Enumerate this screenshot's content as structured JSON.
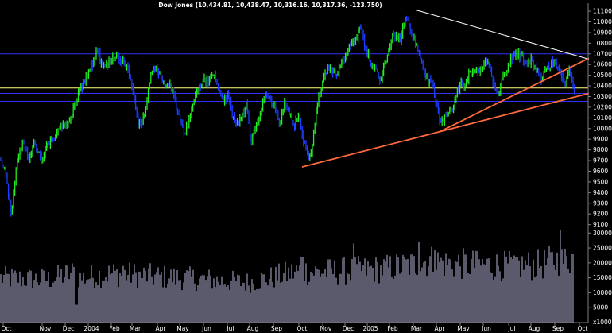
{
  "chart_data": {
    "type": "candlestick-with-volume",
    "title": "Dow Jones (10,434.81, 10,438.47, 10,316.16, 10,317.36, -123.750)",
    "price_axis": {
      "ticks": [
        11100,
        11000,
        10900,
        10800,
        10700,
        10600,
        10500,
        10400,
        10300,
        10200,
        10100,
        10000,
        9900,
        9800,
        9700,
        9600,
        9500,
        9400,
        9300,
        9200,
        9100
      ],
      "ylim": [
        9060,
        11160
      ]
    },
    "volume_axis": {
      "ticks": [
        30000,
        25000,
        20000,
        15000,
        10000,
        5000
      ],
      "bottom_label": "x1000",
      "ylim": [
        0,
        33000
      ]
    },
    "x_axis": {
      "labels": [
        "Oct",
        "Nov",
        "Dec",
        "2004",
        "Feb",
        "Mar",
        "Apr",
        "May",
        "Jun",
        "Jul",
        "Aug",
        "Sep",
        "Oct",
        "Nov",
        "Dec",
        "2005",
        "Feb",
        "Mar",
        "Apr",
        "May",
        "Jun",
        "Jul",
        "Aug",
        "Sep",
        "Oct"
      ]
    },
    "horizontal_lines": [
      {
        "value": 10700,
        "color": "#3030ff"
      },
      {
        "value": 10380,
        "color": "#ffff80"
      },
      {
        "value": 10330,
        "color": "#3030ff"
      },
      {
        "value": 10255,
        "color": "#3030ff"
      }
    ],
    "trendlines": [
      {
        "name": "resistance",
        "color": "#ffffff",
        "from": [
          "Mar 2005",
          11110
        ],
        "to": [
          "Oct 2005",
          10650
        ]
      },
      {
        "name": "support-long",
        "color": "#ff6a3c",
        "from": [
          "Oct 2004",
          9640
        ],
        "to": [
          "Oct 2005",
          10330
        ]
      },
      {
        "name": "support-steep",
        "color": "#ff6a3c",
        "from": [
          "Apr 2005",
          9970
        ],
        "to": [
          "Oct 2005",
          10660
        ]
      }
    ],
    "price_path": [
      [
        0,
        9700
      ],
      [
        5,
        9650
      ],
      [
        10,
        9420
      ],
      [
        14,
        9200
      ],
      [
        20,
        9640
      ],
      [
        28,
        9880
      ],
      [
        36,
        9720
      ],
      [
        44,
        9850
      ],
      [
        52,
        9700
      ],
      [
        60,
        9840
      ],
      [
        68,
        9920
      ],
      [
        76,
        10050
      ],
      [
        84,
        10010
      ],
      [
        92,
        10180
      ],
      [
        100,
        10350
      ],
      [
        108,
        10480
      ],
      [
        116,
        10600
      ],
      [
        122,
        10720
      ],
      [
        130,
        10560
      ],
      [
        138,
        10620
      ],
      [
        146,
        10700
      ],
      [
        154,
        10640
      ],
      [
        160,
        10560
      ],
      [
        166,
        10420
      ],
      [
        172,
        10100
      ],
      [
        178,
        10010
      ],
      [
        184,
        10240
      ],
      [
        190,
        10520
      ],
      [
        196,
        10580
      ],
      [
        202,
        10500
      ],
      [
        208,
        10380
      ],
      [
        214,
        10420
      ],
      [
        220,
        10260
      ],
      [
        226,
        10120
      ],
      [
        232,
        9950
      ],
      [
        238,
        10080
      ],
      [
        244,
        10260
      ],
      [
        250,
        10380
      ],
      [
        256,
        10460
      ],
      [
        262,
        10420
      ],
      [
        268,
        10520
      ],
      [
        274,
        10400
      ],
      [
        280,
        10260
      ],
      [
        286,
        10320
      ],
      [
        292,
        10140
      ],
      [
        298,
        10020
      ],
      [
        304,
        10120
      ],
      [
        310,
        10220
      ],
      [
        316,
        9880
      ],
      [
        322,
        10010
      ],
      [
        328,
        10180
      ],
      [
        334,
        10320
      ],
      [
        340,
        10240
      ],
      [
        346,
        10200
      ],
      [
        352,
        10060
      ],
      [
        358,
        10240
      ],
      [
        364,
        10160
      ],
      [
        370,
        10020
      ],
      [
        376,
        10120
      ],
      [
        382,
        9880
      ],
      [
        388,
        9720
      ],
      [
        392,
        9760
      ],
      [
        396,
        10040
      ],
      [
        400,
        10280
      ],
      [
        406,
        10420
      ],
      [
        412,
        10560
      ],
      [
        418,
        10540
      ],
      [
        424,
        10520
      ],
      [
        430,
        10620
      ],
      [
        436,
        10700
      ],
      [
        442,
        10820
      ],
      [
        448,
        10860
      ],
      [
        454,
        10940
      ],
      [
        460,
        10760
      ],
      [
        466,
        10620
      ],
      [
        472,
        10540
      ],
      [
        478,
        10460
      ],
      [
        484,
        10620
      ],
      [
        490,
        10760
      ],
      [
        496,
        10900
      ],
      [
        502,
        10820
      ],
      [
        508,
        10960
      ],
      [
        512,
        11060
      ],
      [
        516,
        10920
      ],
      [
        522,
        10820
      ],
      [
        526,
        10700
      ],
      [
        532,
        10560
      ],
      [
        538,
        10460
      ],
      [
        544,
        10420
      ],
      [
        548,
        10280
      ],
      [
        554,
        10040
      ],
      [
        560,
        10100
      ],
      [
        566,
        10140
      ],
      [
        572,
        10240
      ],
      [
        578,
        10420
      ],
      [
        584,
        10380
      ],
      [
        590,
        10500
      ],
      [
        596,
        10560
      ],
      [
        602,
        10520
      ],
      [
        608,
        10600
      ],
      [
        614,
        10640
      ],
      [
        620,
        10460
      ],
      [
        626,
        10300
      ],
      [
        632,
        10480
      ],
      [
        638,
        10560
      ],
      [
        644,
        10680
      ],
      [
        650,
        10720
      ],
      [
        656,
        10680
      ],
      [
        662,
        10600
      ],
      [
        668,
        10640
      ],
      [
        674,
        10560
      ],
      [
        680,
        10460
      ],
      [
        686,
        10520
      ],
      [
        692,
        10600
      ],
      [
        698,
        10660
      ],
      [
        704,
        10520
      ],
      [
        710,
        10400
      ],
      [
        716,
        10560
      ],
      [
        720,
        10440
      ],
      [
        724,
        10320
      ]
    ],
    "volume_path": [
      [
        0,
        15000
      ],
      [
        60,
        14500
      ],
      [
        95,
        17000
      ],
      [
        100,
        15000
      ],
      [
        140,
        16500
      ],
      [
        200,
        15500
      ],
      [
        260,
        14500
      ],
      [
        310,
        13500
      ],
      [
        340,
        15000
      ],
      [
        380,
        17500
      ],
      [
        400,
        17000
      ],
      [
        440,
        17500
      ],
      [
        480,
        18000
      ],
      [
        520,
        19500
      ],
      [
        540,
        21000
      ],
      [
        560,
        20000
      ],
      [
        600,
        19500
      ],
      [
        640,
        19000
      ],
      [
        680,
        19500
      ],
      [
        700,
        21000
      ],
      [
        720,
        20500
      ]
    ],
    "volume_spikes": [
      [
        96,
        6000
      ],
      [
        155,
        19000
      ],
      [
        380,
        22000
      ],
      [
        445,
        26500
      ],
      [
        527,
        27000
      ],
      [
        547,
        24500
      ],
      [
        600,
        24000
      ],
      [
        650,
        22000
      ],
      [
        705,
        31000
      ],
      [
        720,
        23000
      ]
    ]
  }
}
